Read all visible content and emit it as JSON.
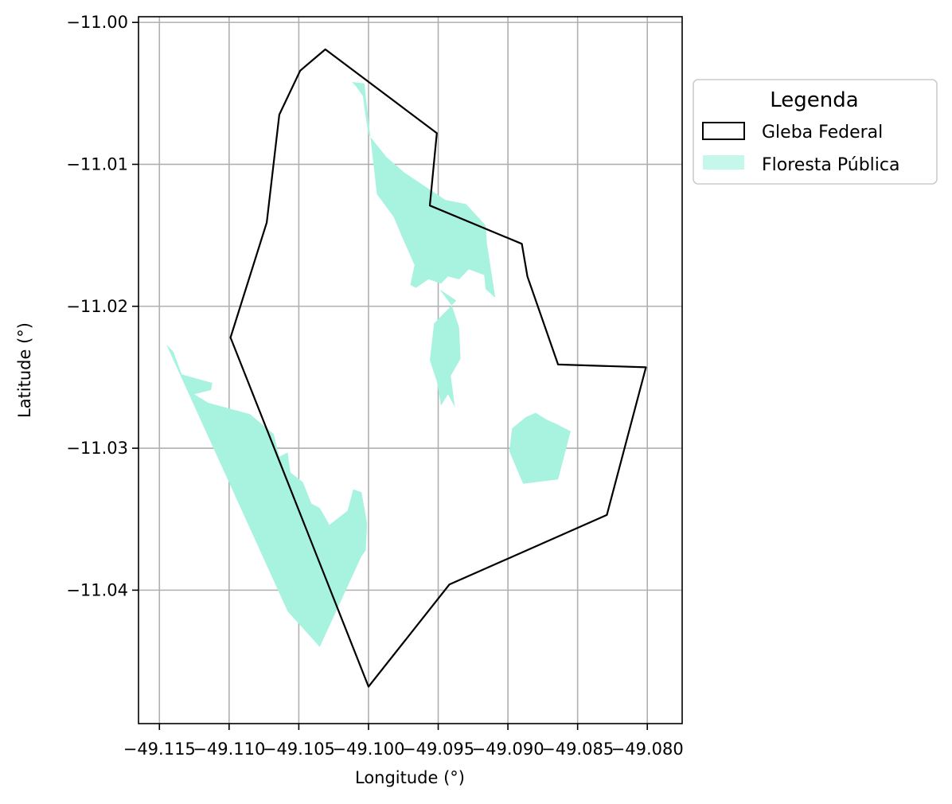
{
  "chart_data": {
    "type": "map",
    "xlabel": "Longitude (°)",
    "ylabel": "Latitude (°)",
    "xlim": [
      -49.1165,
      -49.0775
    ],
    "ylim": [
      -11.0494,
      -10.9996
    ],
    "x_ticks": [
      -49.115,
      -49.11,
      -49.105,
      -49.1,
      -49.095,
      -49.09,
      -49.085,
      -49.08
    ],
    "x_tick_labels": [
      "−49.115",
      "−49.110",
      "−49.105",
      "−49.100",
      "−49.095",
      "−49.090",
      "−49.085",
      "−49.080"
    ],
    "y_ticks": [
      -11.0,
      -11.01,
      -11.02,
      -11.03,
      -11.04
    ],
    "y_tick_labels": [
      "−11.00",
      "−11.01",
      "−11.02",
      "−11.03",
      "−11.04"
    ],
    "grid": true,
    "legend": {
      "title": "Legenda",
      "placement": "outside right, top",
      "entries": [
        {
          "label": "Gleba Federal",
          "style": "outline",
          "edge_color": "#000000"
        },
        {
          "label": "Floresta Pública",
          "style": "fill",
          "fill_color": "#a8f3e0"
        }
      ]
    },
    "colors": {
      "gleba_edge": "#000000",
      "floresta_fill": "#a8f3e0",
      "grid": "#b0b0b0"
    },
    "series": [
      {
        "name": "Gleba Federal",
        "kind": "outline",
        "coords": [
          [
            -49.1031,
            -11.0019
          ],
          [
            -49.1049,
            -11.0034
          ],
          [
            -49.1064,
            -11.0065
          ],
          [
            -49.1073,
            -11.0141
          ],
          [
            -49.1099,
            -11.0222
          ],
          [
            -49.1,
            -11.0468
          ],
          [
            -49.0942,
            -11.0396
          ],
          [
            -49.0829,
            -11.0347
          ],
          [
            -49.0801,
            -11.0243
          ],
          [
            -49.0864,
            -11.0241
          ],
          [
            -49.0886,
            -11.0179
          ],
          [
            -49.089,
            -11.0156
          ],
          [
            -49.0956,
            -11.0129
          ],
          [
            -49.0951,
            -11.0078
          ],
          [
            -49.1031,
            -11.0019
          ]
        ]
      },
      {
        "name": "Floresta Pública",
        "kind": "fill",
        "coords": [
          [
            -49.1145,
            -11.0227
          ],
          [
            -49.114,
            -11.0232
          ],
          [
            -49.1134,
            -11.0248
          ],
          [
            -49.1123,
            -11.0251
          ],
          [
            -49.1112,
            -11.0254
          ],
          [
            -49.1113,
            -11.0259
          ],
          [
            -49.1125,
            -11.0262
          ],
          [
            -49.1115,
            -11.0268
          ],
          [
            -49.1085,
            -11.0276
          ],
          [
            -49.1068,
            -11.029
          ],
          [
            -49.1064,
            -11.0306
          ],
          [
            -49.1058,
            -11.0303
          ],
          [
            -49.1056,
            -11.0317
          ],
          [
            -49.1047,
            -11.0324
          ],
          [
            -49.1041,
            -11.0339
          ],
          [
            -49.1035,
            -11.0342
          ],
          [
            -49.1028,
            -11.0354
          ],
          [
            -49.1015,
            -11.0344
          ],
          [
            -49.1011,
            -11.0329
          ],
          [
            -49.1005,
            -11.0331
          ],
          [
            -49.1001,
            -11.0353
          ],
          [
            -49.1002,
            -11.0372
          ],
          [
            -49.1005,
            -11.0376
          ],
          [
            -49.1035,
            -11.044
          ],
          [
            -49.1058,
            -11.0415
          ],
          [
            -49.1145,
            -11.0227
          ]
        ]
      },
      {
        "name": "Floresta Pública",
        "kind": "fill",
        "coords": [
          [
            -49.0994,
            -11.0121
          ],
          [
            -49.0982,
            -11.0137
          ],
          [
            -49.0976,
            -11.0151
          ],
          [
            -49.0967,
            -11.0171
          ],
          [
            -49.097,
            -11.0185
          ],
          [
            -49.0966,
            -11.0187
          ],
          [
            -49.0957,
            -11.0181
          ],
          [
            -49.0948,
            -11.0184
          ],
          [
            -49.0943,
            -11.0179
          ],
          [
            -49.0935,
            -11.0181
          ],
          [
            -49.0928,
            -11.0174
          ],
          [
            -49.0917,
            -11.0178
          ],
          [
            -49.0916,
            -11.0188
          ],
          [
            -49.0909,
            -11.0194
          ],
          [
            -49.0915,
            -11.0156
          ],
          [
            -49.0916,
            -11.0143
          ],
          [
            -49.093,
            -11.0128
          ],
          [
            -49.0945,
            -11.0125
          ],
          [
            -49.0974,
            -11.0106
          ],
          [
            -49.0987,
            -11.0095
          ],
          [
            -49.1,
            -11.0079
          ],
          [
            -49.1003,
            -11.006
          ],
          [
            -49.1004,
            -11.0052
          ],
          [
            -49.1009,
            -11.0045
          ],
          [
            -49.1012,
            -11.0042
          ],
          [
            -49.1003,
            -11.0043
          ],
          [
            -49.0994,
            -11.0121
          ]
        ]
      },
      {
        "name": "Floresta Pública",
        "kind": "fill",
        "coords": [
          [
            -49.0949,
            -11.0188
          ],
          [
            -49.0937,
            -11.0196
          ],
          [
            -49.0953,
            -11.0212
          ],
          [
            -49.0956,
            -11.0238
          ],
          [
            -49.0951,
            -11.0253
          ],
          [
            -49.0948,
            -11.027
          ],
          [
            -49.0943,
            -11.0262
          ],
          [
            -49.0938,
            -11.0271
          ],
          [
            -49.0941,
            -11.0249
          ],
          [
            -49.0934,
            -11.0237
          ],
          [
            -49.0935,
            -11.0215
          ],
          [
            -49.094,
            -11.02
          ],
          [
            -49.0949,
            -11.0188
          ]
        ]
      },
      {
        "name": "Floresta Pública",
        "kind": "fill",
        "coords": [
          [
            -49.0897,
            -11.0286
          ],
          [
            -49.0887,
            -11.0278
          ],
          [
            -49.088,
            -11.0275
          ],
          [
            -49.0872,
            -11.028
          ],
          [
            -49.0865,
            -11.0283
          ],
          [
            -49.0855,
            -11.0288
          ],
          [
            -49.0864,
            -11.0322
          ],
          [
            -49.0889,
            -11.0325
          ],
          [
            -49.089,
            -11.0323
          ],
          [
            -49.0899,
            -11.0302
          ],
          [
            -49.0897,
            -11.0286
          ]
        ]
      }
    ]
  }
}
